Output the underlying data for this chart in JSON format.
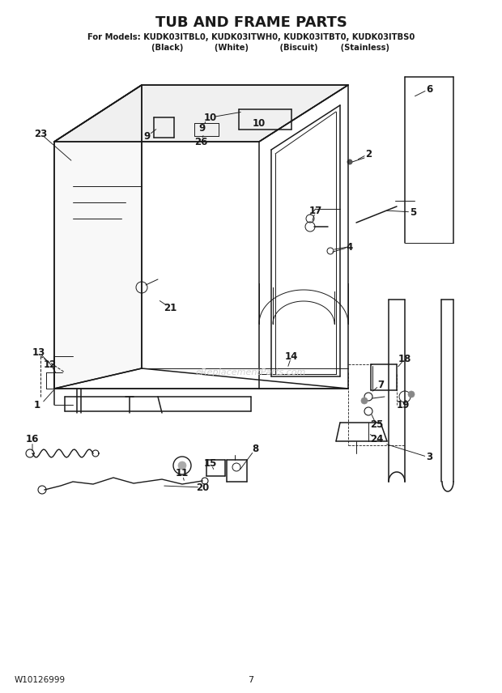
{
  "title": "TUB AND FRAME PARTS",
  "subtitle1": "For Models: KUDK03ITBL0, KUDK03ITWH0, KUDK03ITBT0, KUDK03ITBS0",
  "subtitle2": "              (Black)           (White)           (Biscuit)        (Stainless)",
  "footer_left": "W10126999",
  "footer_center": "7",
  "bg_color": "#ffffff",
  "lc": "#1a1a1a",
  "watermark": "eReplacementParts.com"
}
